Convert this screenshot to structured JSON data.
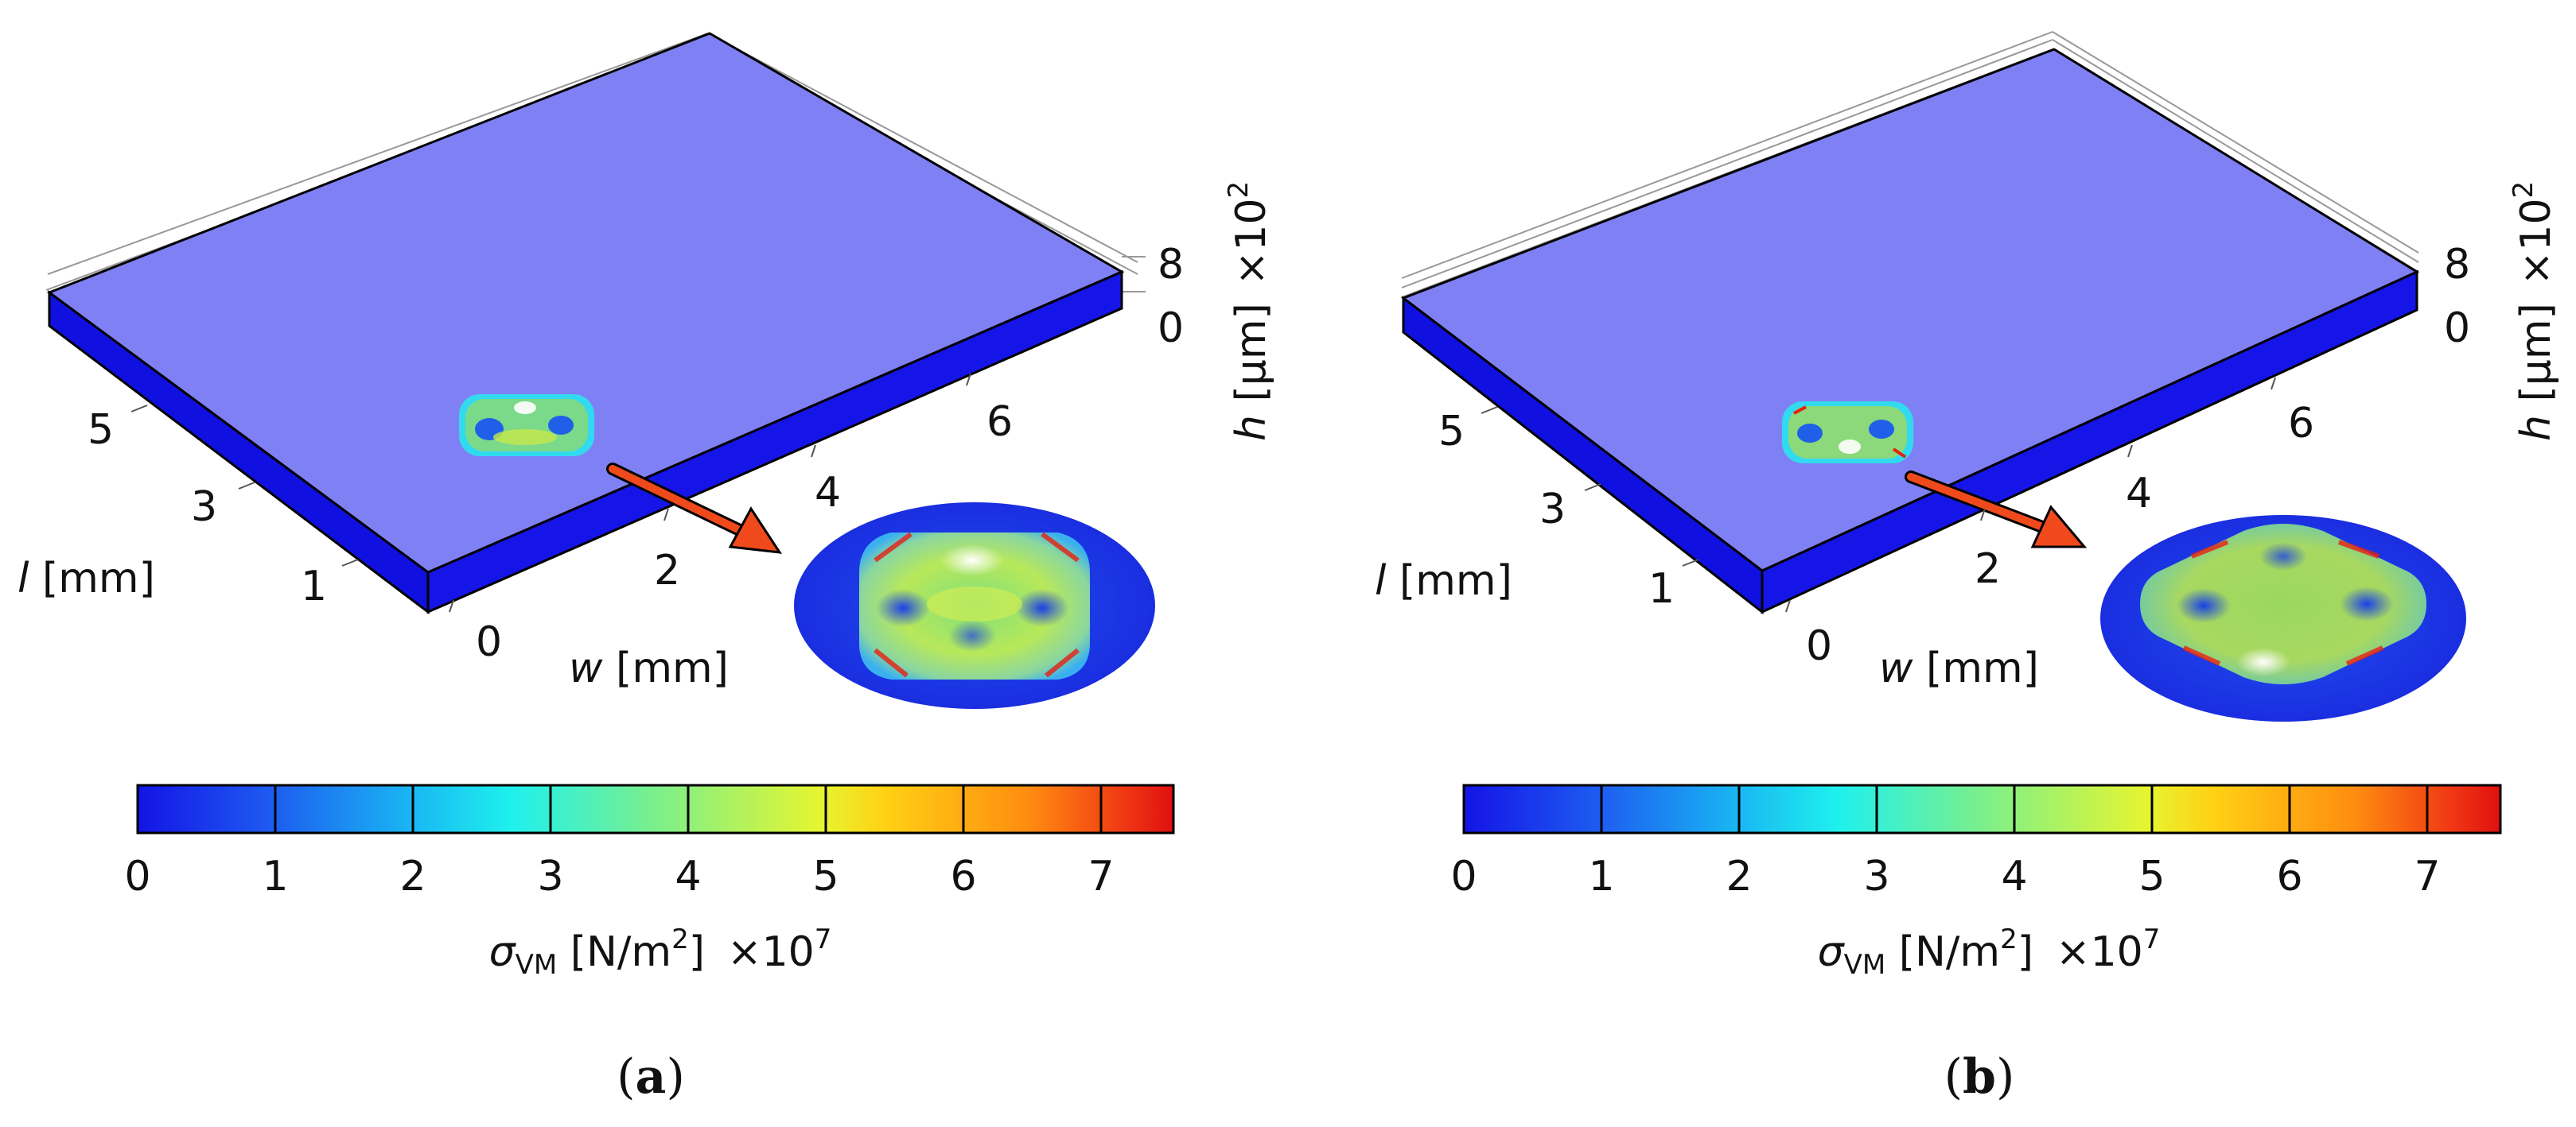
{
  "panels": [
    {
      "label_open": "(",
      "label_letter": "a",
      "label_close": ")",
      "l_axis": {
        "var": "l",
        "unit": " [mm]",
        "ticks": [
          "5",
          "3",
          "1"
        ]
      },
      "w_axis": {
        "var": "w",
        "unit": " [mm]",
        "ticks": [
          "0",
          "2",
          "4",
          "6"
        ]
      },
      "h_axis": {
        "var": "h",
        "unit": " [µm]",
        "mult_base": "×10",
        "mult_exp": "2",
        "ticks": [
          "8",
          "0"
        ]
      },
      "colorbar": {
        "ticks": [
          "0",
          "1",
          "2",
          "3",
          "4",
          "5",
          "6",
          "7"
        ],
        "label_sym": "σ",
        "label_sub": "VM",
        "label_unit": " [N/m",
        "label_unit_sup": "2",
        "label_unit_end": "]",
        "mult_base": "×10",
        "mult_exp": "7"
      }
    },
    {
      "label_open": "(",
      "label_letter": "b",
      "label_close": ")",
      "l_axis": {
        "var": "l",
        "unit": " [mm]",
        "ticks": [
          "5",
          "3",
          "1"
        ]
      },
      "w_axis": {
        "var": "w",
        "unit": " [mm]",
        "ticks": [
          "0",
          "2",
          "4",
          "6"
        ]
      },
      "h_axis": {
        "var": "h",
        "unit": " [µm]",
        "mult_base": "×10",
        "mult_exp": "2",
        "ticks": [
          "8",
          "0"
        ]
      },
      "colorbar": {
        "ticks": [
          "0",
          "1",
          "2",
          "3",
          "4",
          "5",
          "6",
          "7"
        ],
        "label_sym": "σ",
        "label_sub": "VM",
        "label_unit": " [N/m",
        "label_unit_sup": "2",
        "label_unit_end": "]",
        "mult_base": "×10",
        "mult_exp": "7"
      }
    }
  ],
  "colors": {
    "plate_top": "#8080f5",
    "plate_side": "#1010e0",
    "arrow": "#f04a1c",
    "colormap": [
      "#1414e6",
      "#1e5cf0",
      "#19b4f2",
      "#1ef0ee",
      "#7bef8b",
      "#d2f23c",
      "#ffd214",
      "#ff8c10",
      "#f03a14",
      "#e01010"
    ]
  }
}
